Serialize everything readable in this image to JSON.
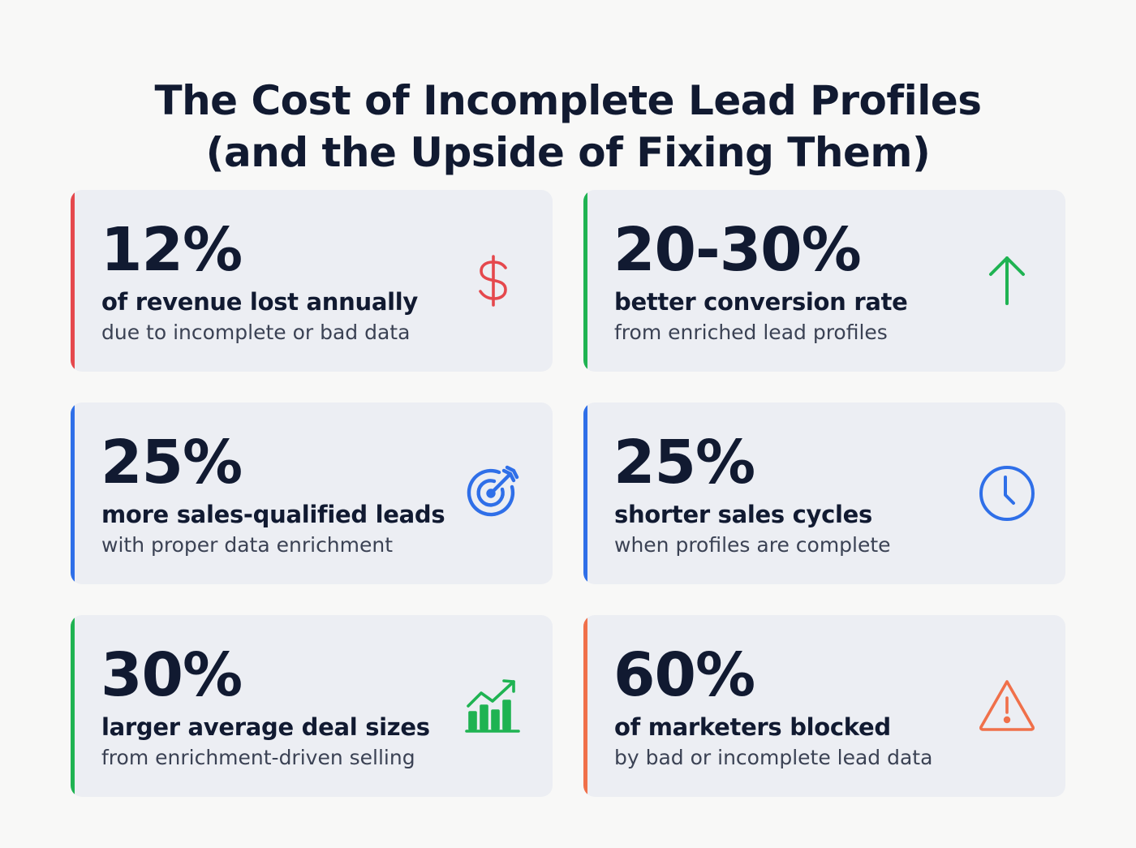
{
  "title": {
    "line1": "The Cost of Incomplete Lead Profiles",
    "line2": "(and the Upside of Fixing Them)"
  },
  "colors": {
    "red": "#e5484d",
    "green": "#1fb352",
    "blue": "#2f6fe8",
    "orange": "#f0704a",
    "card_bg": "#eceef3",
    "text": "#111a31"
  },
  "cards": [
    {
      "stat": "12%",
      "headline": "of revenue lost annually",
      "sub": "due to incomplete or bad data",
      "accent": "#e5484d",
      "icon": "dollar-icon"
    },
    {
      "stat": "20-30%",
      "headline": "better conversion rate",
      "sub": "from enriched lead profiles",
      "accent": "#1fb352",
      "icon": "arrow-up-icon"
    },
    {
      "stat": "25%",
      "headline": "more sales-qualified leads",
      "sub": "with proper data enrichment",
      "accent": "#2f6fe8",
      "icon": "target-icon"
    },
    {
      "stat": "25%",
      "headline": "shorter sales cycles",
      "sub": "when profiles are complete",
      "accent": "#2f6fe8",
      "icon": "clock-icon"
    },
    {
      "stat": "30%",
      "headline": "larger average deal sizes",
      "sub": "from enrichment-driven selling",
      "accent": "#1fb352",
      "icon": "growth-chart-icon"
    },
    {
      "stat": "60%",
      "headline": "of marketers blocked",
      "sub": "by bad or incomplete lead data",
      "accent": "#f0704a",
      "icon": "warning-icon"
    }
  ]
}
